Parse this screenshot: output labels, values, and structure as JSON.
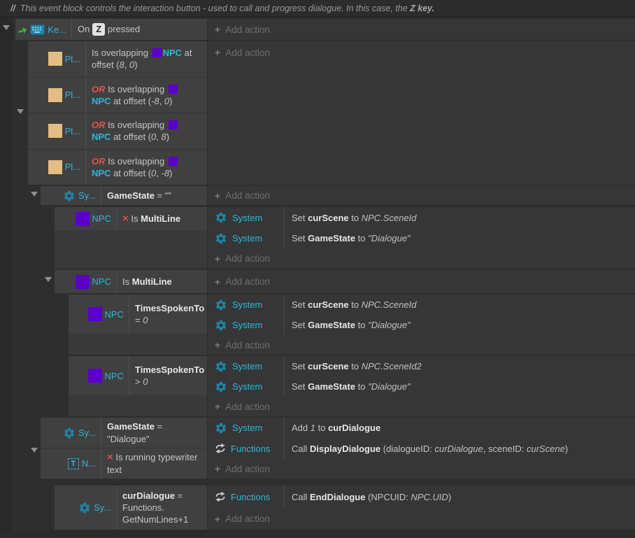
{
  "colors": {
    "object_cyan": "#2db7d9",
    "npc_purple": "#5b00ca",
    "player_tan": "#e3bd84",
    "invert_red": "#e0524f",
    "gear_teal": "#1b86a9",
    "arrow_green": "#3fae49",
    "key_bg": "#e3e3e3"
  },
  "comment": {
    "segments": [
      {
        "s": "cmb",
        "t": "//"
      },
      {
        "s": "cm",
        "t": "  This event block controls the interaction button - used to call and progress dialogue. In this case, the "
      },
      {
        "s": "cmb",
        "t": "Z key."
      }
    ]
  },
  "ui": {
    "plus": "+",
    "add_action": "Add action"
  },
  "icons": {
    "text_letter": "T"
  },
  "objects": {
    "keyboard_short": "Ke...",
    "player_short": "Pl...",
    "system_short": "Sy...",
    "text_short": "N...",
    "npc": "NPC",
    "system": "System",
    "functions": "Functions"
  },
  "conditions": {
    "header": [
      {
        "s": "r",
        "t": "On"
      },
      {
        "s": "key",
        "t": "Z"
      },
      {
        "s": "r",
        "t": "pressed"
      }
    ],
    "or1": [
      {
        "s": "r",
        "t": "Is overlapping "
      },
      {
        "s": "sq"
      },
      {
        "s": "r",
        "t": "​"
      },
      {
        "s": "c",
        "t": "NPC"
      },
      {
        "s": "r",
        "t": " at offset ("
      },
      {
        "s": "i",
        "t": "8"
      },
      {
        "s": "r",
        "t": ", "
      },
      {
        "s": "i",
        "t": "0"
      },
      {
        "s": "r",
        "t": ")"
      }
    ],
    "or2": [
      {
        "s": "o",
        "t": "OR"
      },
      {
        "s": "r",
        "t": " Is overlapping "
      },
      {
        "s": "sq"
      },
      {
        "s": "r",
        "t": "​"
      },
      {
        "s": "c",
        "t": "NPC"
      },
      {
        "s": "r",
        "t": " at offset ("
      },
      {
        "s": "i",
        "t": "-8"
      },
      {
        "s": "r",
        "t": ", "
      },
      {
        "s": "i",
        "t": "0"
      },
      {
        "s": "r",
        "t": ")"
      }
    ],
    "or3": [
      {
        "s": "o",
        "t": "OR"
      },
      {
        "s": "r",
        "t": " Is overlapping "
      },
      {
        "s": "sq"
      },
      {
        "s": "r",
        "t": "​"
      },
      {
        "s": "c",
        "t": "NPC"
      },
      {
        "s": "r",
        "t": " at offset ("
      },
      {
        "s": "i",
        "t": "0"
      },
      {
        "s": "r",
        "t": ", "
      },
      {
        "s": "i",
        "t": "8"
      },
      {
        "s": "r",
        "t": ")"
      }
    ],
    "or4": [
      {
        "s": "o",
        "t": "OR"
      },
      {
        "s": "r",
        "t": " Is overlapping "
      },
      {
        "s": "sq"
      },
      {
        "s": "r",
        "t": "​"
      },
      {
        "s": "c",
        "t": "NPC"
      },
      {
        "s": "r",
        "t": " at offset ("
      },
      {
        "s": "i",
        "t": "0"
      },
      {
        "s": "r",
        "t": ", "
      },
      {
        "s": "i",
        "t": "-8"
      },
      {
        "s": "r",
        "t": ")"
      }
    ],
    "gamestate_empty": [
      {
        "s": "b",
        "t": "GameState"
      },
      {
        "s": "r",
        "t": " = \"\""
      }
    ],
    "not_multiline": [
      {
        "s": "x",
        "t": "×"
      },
      {
        "s": "r",
        "t": " Is "
      },
      {
        "s": "b",
        "t": "MultiLine"
      }
    ],
    "multiline": [
      {
        "s": "r",
        "t": "Is "
      },
      {
        "s": "b",
        "t": "MultiLine"
      }
    ],
    "times_eq_0": [
      {
        "s": "b",
        "t": "TimesSpokenTo"
      },
      {
        "s": "r",
        "t": " = "
      },
      {
        "s": "i",
        "t": "0"
      }
    ],
    "times_gt_0": [
      {
        "s": "b",
        "t": "TimesSpokenTo"
      },
      {
        "s": "r",
        "t": " > "
      },
      {
        "s": "i",
        "t": "0"
      }
    ],
    "gamestate_dialogue": [
      {
        "s": "b",
        "t": "GameState"
      },
      {
        "s": "r",
        "t": " = \"Dialogue\""
      }
    ],
    "not_typewriter": [
      {
        "s": "x",
        "t": "×"
      },
      {
        "s": "r",
        "t": " Is running typewriter text"
      }
    ],
    "curdialogue_expr": [
      {
        "s": "b",
        "t": "curDialogue"
      },
      {
        "s": "r",
        "t": " = Functions.​GetNumLines+1"
      }
    ]
  },
  "actions": {
    "set_curscene_a": [
      {
        "s": "r",
        "t": "Set "
      },
      {
        "s": "b",
        "t": "curScene"
      },
      {
        "s": "r",
        "t": " to "
      },
      {
        "s": "i",
        "t": "NPC.SceneId"
      }
    ],
    "set_gamestate_a": [
      {
        "s": "r",
        "t": "Set "
      },
      {
        "s": "b",
        "t": "GameState"
      },
      {
        "s": "r",
        "t": " to "
      },
      {
        "s": "i",
        "t": "\"Dialogue\""
      }
    ],
    "set_curscene_b": [
      {
        "s": "r",
        "t": "Set "
      },
      {
        "s": "b",
        "t": "curScene"
      },
      {
        "s": "r",
        "t": " to "
      },
      {
        "s": "i",
        "t": "NPC.SceneId"
      }
    ],
    "set_gamestate_b": [
      {
        "s": "r",
        "t": "Set "
      },
      {
        "s": "b",
        "t": "GameState"
      },
      {
        "s": "r",
        "t": " to "
      },
      {
        "s": "i",
        "t": "\"Dialogue\""
      }
    ],
    "set_curscene_c": [
      {
        "s": "r",
        "t": "Set "
      },
      {
        "s": "b",
        "t": "curScene"
      },
      {
        "s": "r",
        "t": " to "
      },
      {
        "s": "i",
        "t": "NPC.SceneId2"
      }
    ],
    "set_gamestate_c": [
      {
        "s": "r",
        "t": "Set "
      },
      {
        "s": "b",
        "t": "GameState"
      },
      {
        "s": "r",
        "t": " to "
      },
      {
        "s": "i",
        "t": "\"Dialogue\""
      }
    ],
    "add_1_curdialogue": [
      {
        "s": "r",
        "t": "Add "
      },
      {
        "s": "i",
        "t": "1"
      },
      {
        "s": "r",
        "t": " to "
      },
      {
        "s": "b",
        "t": "curDialogue"
      }
    ],
    "call_displaydialogue": [
      {
        "s": "r",
        "t": "Call "
      },
      {
        "s": "b",
        "t": "DisplayDialogue"
      },
      {
        "s": "r",
        "t": " (dialogueID: "
      },
      {
        "s": "i",
        "t": "curDialogue"
      },
      {
        "s": "r",
        "t": ", sceneID: "
      },
      {
        "s": "i",
        "t": "curScene"
      },
      {
        "s": "r",
        "t": ")"
      }
    ],
    "call_enddialogue": [
      {
        "s": "r",
        "t": "Call "
      },
      {
        "s": "b",
        "t": "EndDialogue"
      },
      {
        "s": "r",
        "t": " (NPCUID: "
      },
      {
        "s": "i",
        "t": "NPC.UID"
      },
      {
        "s": "r",
        "t": ")"
      }
    ]
  }
}
